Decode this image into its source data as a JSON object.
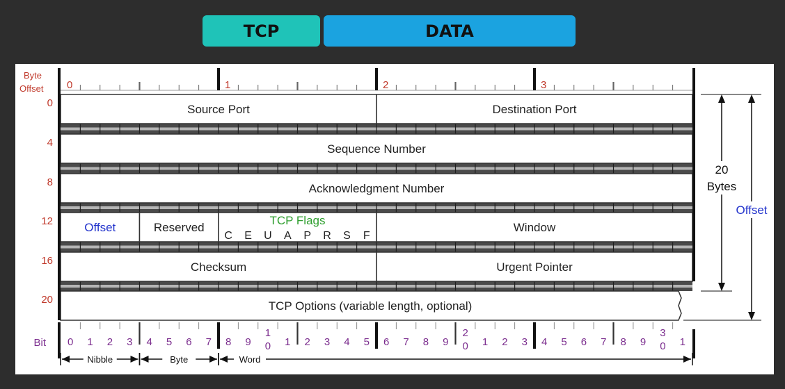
{
  "header": {
    "tcp_label": "TCP",
    "data_label": "DATA"
  },
  "diagram": {
    "byte_offset_label": [
      "Byte",
      "Offset"
    ],
    "byte_ticks": [
      "0",
      "1",
      "2",
      "3"
    ],
    "row_offsets": [
      "0",
      "4",
      "8",
      "12",
      "16",
      "20"
    ],
    "fields": {
      "source_port": "Source Port",
      "destination_port": "Destination Port",
      "sequence_number": "Sequence Number",
      "acknowledgment_number": "Acknowledgment Number",
      "offset": "Offset",
      "reserved": "Reserved",
      "tcp_flags": "TCP Flags",
      "window": "Window",
      "checksum": "Checksum",
      "urgent_pointer": "Urgent Pointer",
      "tcp_options": "TCP Options (variable length, optional)"
    },
    "flag_letters": [
      "C",
      "E",
      "U",
      "A",
      "P",
      "R",
      "S",
      "F"
    ],
    "bit_label": "Bit",
    "bit_numbers": [
      "0",
      "1",
      "2",
      "3",
      "4",
      "5",
      "6",
      "7",
      "8",
      "9",
      "1|0",
      "1",
      "2",
      "3",
      "4",
      "5",
      "6",
      "7",
      "8",
      "9",
      "2|0",
      "1",
      "2",
      "3",
      "4",
      "5",
      "6",
      "7",
      "8",
      "9",
      "3|0",
      "1"
    ],
    "scale_labels": {
      "nibble": "Nibble",
      "byte": "Byte",
      "word": "Word"
    },
    "side_labels": {
      "bytes_value": "20",
      "bytes_unit": "Bytes",
      "offset": "Offset"
    },
    "colors": {
      "red": "#c0392b",
      "blue": "#2233cc",
      "green": "#2e9e2e",
      "purple": "#7b2d8e"
    }
  }
}
